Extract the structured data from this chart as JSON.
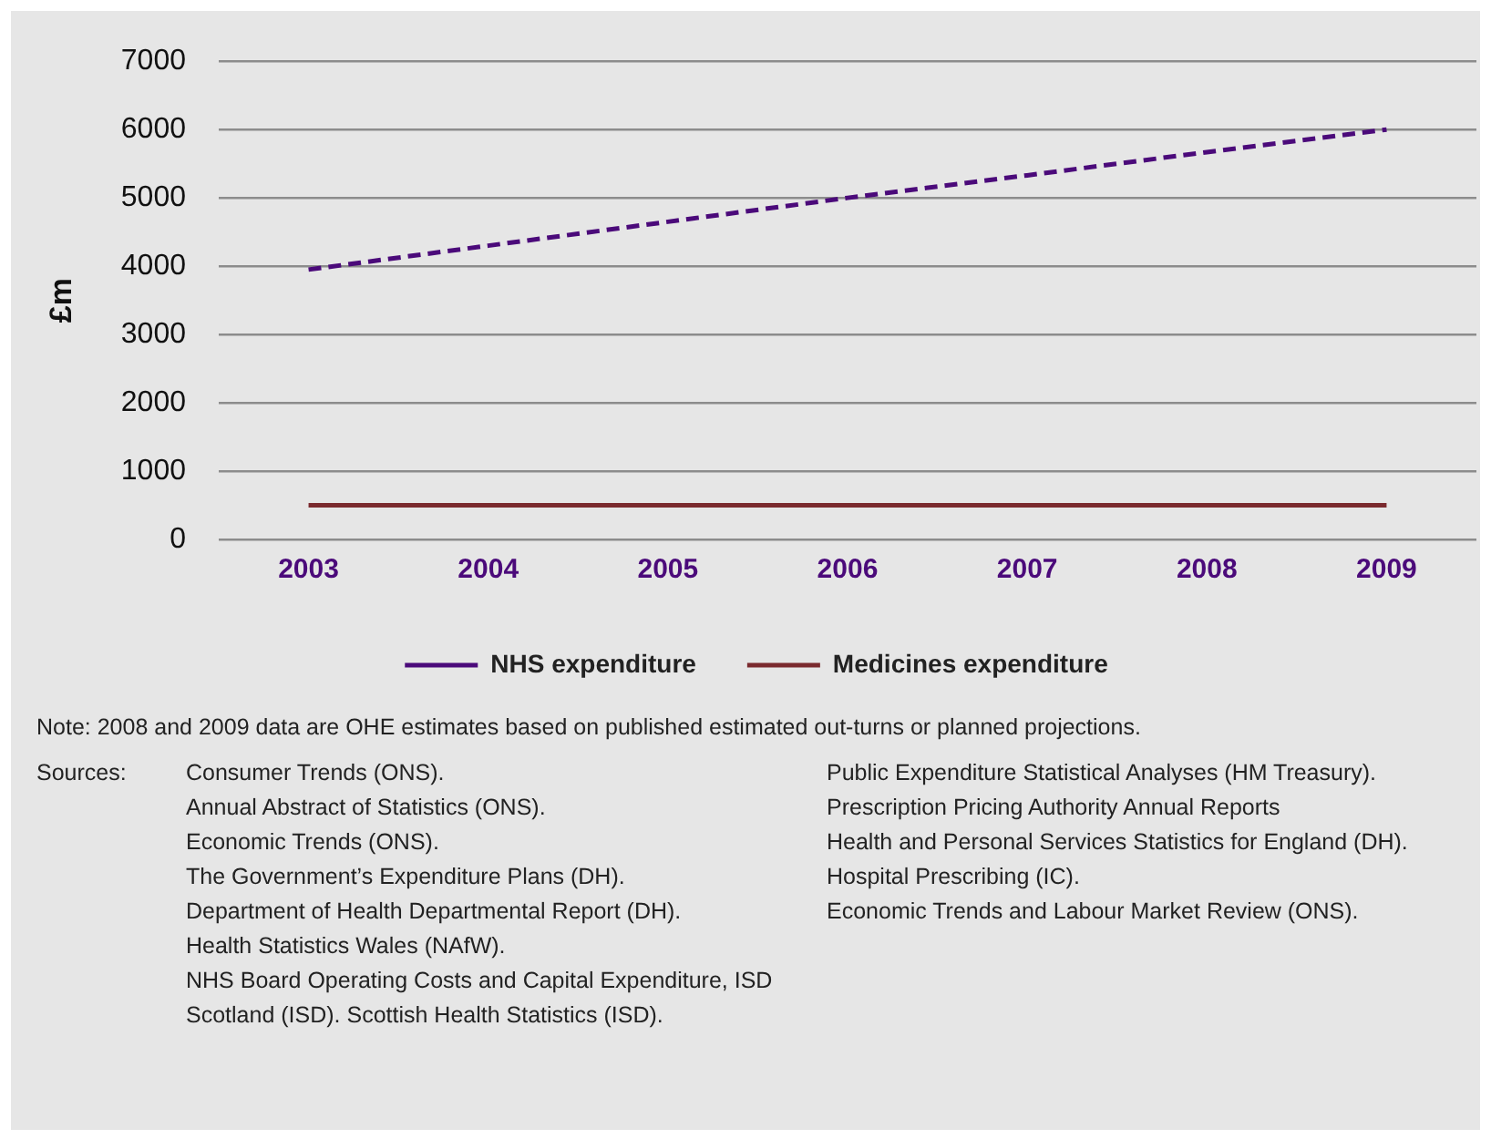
{
  "chart_data": {
    "type": "line",
    "ylabel": "£m",
    "categories": [
      "2003",
      "2004",
      "2005",
      "2006",
      "2007",
      "2008",
      "2009"
    ],
    "series": [
      {
        "name": "NHS expenditure",
        "color": "#4b0a7a",
        "line_style": "dashed",
        "values": [
          3950,
          4300,
          4650,
          5000,
          5330,
          5670,
          6000
        ]
      },
      {
        "name": "Medicines expenditure",
        "color": "#7a2a2e",
        "line_style": "solid",
        "values": [
          500,
          500,
          500,
          500,
          500,
          500,
          500
        ]
      }
    ],
    "ylim": [
      0,
      7000
    ],
    "yticks": [
      0,
      1000,
      2000,
      3000,
      4000,
      5000,
      6000,
      7000
    ],
    "grid": "y",
    "legend": "bottom",
    "marker": "none",
    "annotations": [
      "Note: 2008 and 2009 data are OHE estimates based on published estimated out-turns or planned projections.",
      "Sources:",
      "Consumer Trends (ONS).",
      "Annual Abstract of Statistics (ONS).",
      "Economic Trends (ONS).",
      "The Government’s Expenditure Plans (DH).",
      "Department of Health Departmental Report (DH).",
      "Health Statistics Wales (NAfW).",
      "NHS Board Operating Costs and Capital Expenditure, ISD Scotland (ISD). Scottish Health Statistics (ISD).",
      "Public Expenditure Statistical Analyses (HM Treasury).",
      "Prescription Pricing Authority Annual Reports",
      "Health and Personal Services Statistics for England (DH).",
      "Hospital Prescribing (IC).",
      "Economic Trends and Labour Market Review (ONS)."
    ]
  }
}
